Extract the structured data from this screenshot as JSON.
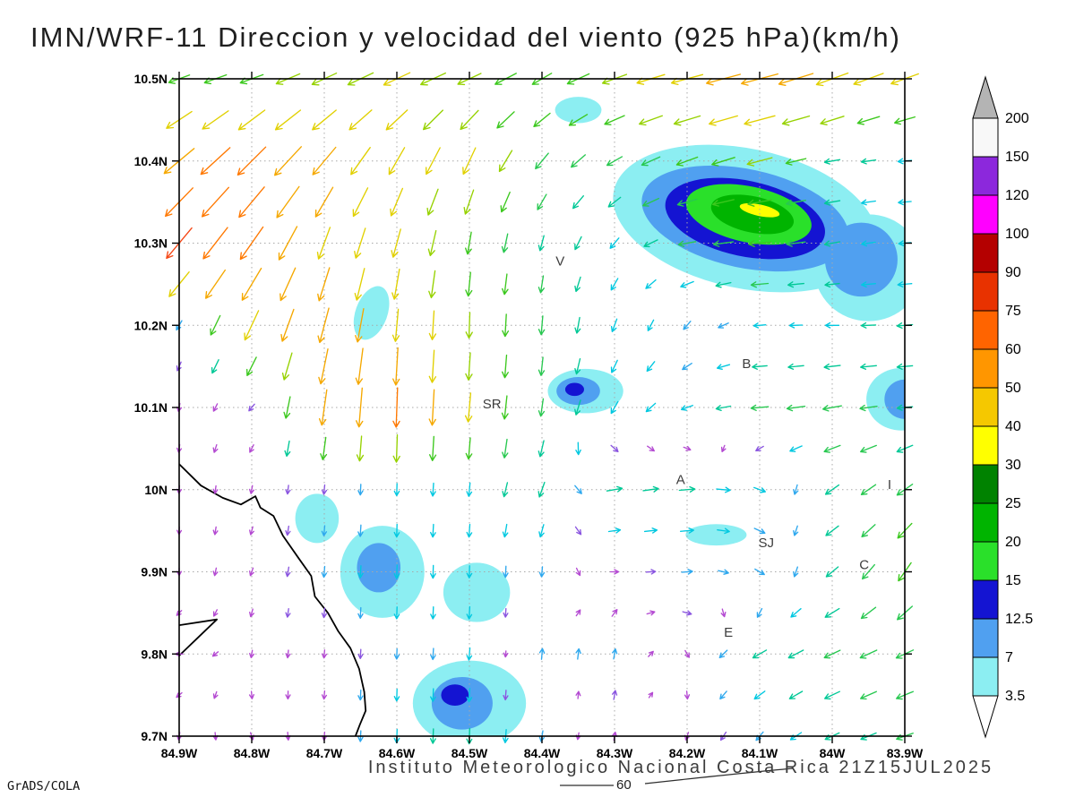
{
  "title": "IMN/WRF-11 Direccion y velocidad del viento (925 hPa)(km/h)",
  "footer": {
    "caption": "Instituto Meteorologico Nacional Costa Rica 21Z15JUL2025",
    "credit": "GrADS/COLA",
    "stray_contour_label": "60"
  },
  "chart_data": {
    "type": "vector_field",
    "title": "IMN/WRF-11 Direccion y velocidad del viento (925 hPa)(km/h)",
    "shading_variable": "wind speed (km/h)",
    "x_axis": {
      "ticks": [
        "84.9W",
        "84.8W",
        "84.7W",
        "84.6W",
        "84.5W",
        "84.4W",
        "84.3W",
        "84.2W",
        "84.1W",
        "84W",
        "83.9W"
      ],
      "lon_range": [
        84.9,
        83.9
      ]
    },
    "y_axis": {
      "ticks": [
        "10.5N",
        "10.4N",
        "10.3N",
        "10.2N",
        "10.1N",
        "10N",
        "9.9N",
        "9.8N",
        "9.7N"
      ],
      "lat_range": [
        9.7,
        10.5
      ]
    },
    "colorbar": {
      "levels": [
        3.5,
        7,
        12.5,
        15,
        20,
        25,
        30,
        40,
        50,
        60,
        75,
        90,
        100,
        120,
        150,
        200
      ],
      "labels": [
        "3.5",
        "7",
        "12.5",
        "15",
        "20",
        "25",
        "30",
        "40",
        "50",
        "60",
        "75",
        "90",
        "100",
        "120",
        "150",
        "200"
      ],
      "segment_colors": [
        "#8ceef2",
        "#50a0f0",
        "#1414d2",
        "#2ae02a",
        "#00b400",
        "#008200",
        "#ffff00",
        "#f5c800",
        "#ff9600",
        "#ff6400",
        "#e83200",
        "#b40000",
        "#ff00ff",
        "#8c28dc",
        "#f8f8f8"
      ],
      "over_color": "#b4b4b4",
      "under_color": "#ffffff"
    },
    "vector_colors": [
      {
        "max": 4.5,
        "color": "#b44ad2"
      },
      {
        "max": 6.5,
        "color": "#8a55e0"
      },
      {
        "max": 9,
        "color": "#2ea8ee"
      },
      {
        "max": 13,
        "color": "#00c8e0"
      },
      {
        "max": 17,
        "color": "#00c896"
      },
      {
        "max": 22,
        "color": "#28c850"
      },
      {
        "max": 28,
        "color": "#3cc81e"
      },
      {
        "max": 34,
        "color": "#96d200"
      },
      {
        "max": 42,
        "color": "#e1d000"
      },
      {
        "max": 52,
        "color": "#f5a800"
      },
      {
        "max": 64,
        "color": "#ff7800"
      },
      {
        "max": 80,
        "color": "#f54614"
      },
      {
        "max": 9999,
        "color": "#e12020"
      }
    ],
    "wind_grid": {
      "dir_convention": "direction arrow points toward, degrees CCW from east (0=E, 90=N, 180=W, 270=S)",
      "lons": [
        84.9,
        84.8,
        84.7,
        84.6,
        84.5,
        84.4,
        84.3,
        84.2,
        84.1,
        84.0,
        83.9
      ],
      "lats": [
        10.5,
        10.4,
        10.3,
        10.2,
        10.1,
        10.0,
        9.9,
        9.8,
        9.7
      ],
      "speed": [
        [
          25,
          28,
          32,
          35,
          30,
          25,
          30,
          40,
          48,
          42,
          35
        ],
        [
          50,
          55,
          45,
          38,
          35,
          22,
          18,
          25,
          30,
          15,
          12
        ],
        [
          70,
          55,
          42,
          35,
          25,
          15,
          12,
          18,
          25,
          15,
          10
        ],
        [
          8,
          40,
          45,
          40,
          30,
          20,
          12,
          8,
          10,
          12,
          15
        ],
        [
          4,
          5,
          45,
          55,
          35,
          18,
          12,
          10,
          18,
          20,
          15
        ],
        [
          3,
          4,
          6,
          10,
          12,
          15,
          15,
          15,
          10,
          16,
          20
        ],
        [
          3,
          4,
          8,
          12,
          10,
          7,
          4,
          8,
          8,
          15,
          25
        ],
        [
          3,
          3,
          4,
          7,
          10,
          8,
          7,
          4,
          15,
          18,
          20
        ],
        [
          3,
          3,
          4,
          12,
          15,
          8,
          4,
          4,
          8,
          15,
          18
        ]
      ],
      "dir": [
        [
          200,
          200,
          205,
          205,
          205,
          210,
          200,
          195,
          195,
          200,
          200
        ],
        [
          220,
          225,
          230,
          240,
          245,
          230,
          210,
          200,
          195,
          190,
          185
        ],
        [
          230,
          235,
          250,
          255,
          260,
          255,
          230,
          190,
          185,
          190,
          185
        ],
        [
          240,
          245,
          255,
          265,
          268,
          265,
          250,
          230,
          185,
          180,
          185
        ],
        [
          260,
          230,
          262,
          268,
          265,
          262,
          240,
          200,
          185,
          190,
          185
        ],
        [
          265,
          260,
          265,
          268,
          265,
          250,
          10,
          5,
          340,
          215,
          215
        ],
        [
          270,
          250,
          265,
          268,
          268,
          265,
          0,
          5,
          330,
          220,
          235
        ],
        [
          180,
          260,
          265,
          268,
          265,
          85,
          80,
          300,
          210,
          205,
          205
        ],
        [
          260,
          290,
          265,
          268,
          268,
          260,
          80,
          250,
          230,
          205,
          200
        ]
      ]
    },
    "shaded_regions": [
      {
        "lon": 84.12,
        "lat": 10.33,
        "rx": 0.185,
        "ry": 0.085,
        "rot": 12,
        "color": "#8ceef2"
      },
      {
        "lon": 83.95,
        "lat": 10.27,
        "rx": 0.075,
        "ry": 0.065,
        "rot": 0,
        "color": "#8ceef2"
      },
      {
        "lon": 84.12,
        "lat": 10.33,
        "rx": 0.145,
        "ry": 0.06,
        "rot": 12,
        "color": "#50a0f0"
      },
      {
        "lon": 83.96,
        "lat": 10.28,
        "rx": 0.05,
        "ry": 0.045,
        "rot": 0,
        "color": "#50a0f0"
      },
      {
        "lon": 84.12,
        "lat": 10.33,
        "rx": 0.112,
        "ry": 0.046,
        "rot": 12,
        "color": "#1414d2"
      },
      {
        "lon": 84.115,
        "lat": 10.335,
        "rx": 0.088,
        "ry": 0.034,
        "rot": 12,
        "color": "#2ae02a"
      },
      {
        "lon": 84.11,
        "lat": 10.335,
        "rx": 0.058,
        "ry": 0.022,
        "rot": 12,
        "color": "#00b400"
      },
      {
        "lon": 84.1,
        "lat": 10.34,
        "rx": 0.028,
        "ry": 0.007,
        "rot": 12,
        "color": "#ffff00"
      },
      {
        "lon": 84.35,
        "lat": 10.462,
        "rx": 0.032,
        "ry": 0.016,
        "rot": 0,
        "color": "#8ceef2"
      },
      {
        "lon": 84.635,
        "lat": 10.215,
        "rx": 0.022,
        "ry": 0.034,
        "rot": 20,
        "color": "#8ceef2"
      },
      {
        "lon": 84.34,
        "lat": 10.12,
        "rx": 0.052,
        "ry": 0.027,
        "rot": 0,
        "color": "#8ceef2"
      },
      {
        "lon": 84.35,
        "lat": 10.12,
        "rx": 0.03,
        "ry": 0.017,
        "rot": 0,
        "color": "#50a0f0"
      },
      {
        "lon": 84.355,
        "lat": 10.122,
        "rx": 0.013,
        "ry": 0.008,
        "rot": 0,
        "color": "#1414d2"
      },
      {
        "lon": 83.905,
        "lat": 10.11,
        "rx": 0.048,
        "ry": 0.038,
        "rot": 0,
        "color": "#8ceef2"
      },
      {
        "lon": 83.9,
        "lat": 10.11,
        "rx": 0.028,
        "ry": 0.024,
        "rot": 0,
        "color": "#50a0f0"
      },
      {
        "lon": 84.71,
        "lat": 9.965,
        "rx": 0.03,
        "ry": 0.03,
        "rot": 0,
        "color": "#8ceef2"
      },
      {
        "lon": 84.62,
        "lat": 9.9,
        "rx": 0.058,
        "ry": 0.056,
        "rot": 0,
        "color": "#8ceef2"
      },
      {
        "lon": 84.625,
        "lat": 9.905,
        "rx": 0.03,
        "ry": 0.03,
        "rot": 0,
        "color": "#50a0f0"
      },
      {
        "lon": 84.49,
        "lat": 9.875,
        "rx": 0.046,
        "ry": 0.036,
        "rot": 0,
        "color": "#8ceef2"
      },
      {
        "lon": 84.16,
        "lat": 9.945,
        "rx": 0.042,
        "ry": 0.013,
        "rot": 0,
        "color": "#8ceef2"
      },
      {
        "lon": 84.5,
        "lat": 9.74,
        "rx": 0.078,
        "ry": 0.052,
        "rot": 0,
        "color": "#8ceef2"
      },
      {
        "lon": 84.51,
        "lat": 9.74,
        "rx": 0.042,
        "ry": 0.032,
        "rot": 0,
        "color": "#50a0f0"
      },
      {
        "lon": 84.52,
        "lat": 9.75,
        "rx": 0.019,
        "ry": 0.013,
        "rot": 0,
        "color": "#1414d2"
      }
    ],
    "cities": [
      {
        "label": "V",
        "lon": 84.375,
        "lat": 10.273
      },
      {
        "label": "SR",
        "lon": 84.469,
        "lat": 10.099
      },
      {
        "label": "B",
        "lon": 84.118,
        "lat": 10.148
      },
      {
        "label": "A",
        "lon": 84.209,
        "lat": 10.007
      },
      {
        "label": "SJ",
        "lon": 84.091,
        "lat": 9.93
      },
      {
        "label": "C",
        "lon": 83.956,
        "lat": 9.903
      },
      {
        "label": "E",
        "lon": 84.143,
        "lat": 9.821
      },
      {
        "label": "I",
        "lon": 83.921,
        "lat": 10.001
      }
    ],
    "coastline": {
      "segments": [
        [
          [
            84.9,
            10.031
          ],
          [
            84.87,
            10.005
          ],
          [
            84.84,
            9.99
          ],
          [
            84.815,
            9.982
          ],
          [
            84.795,
            9.992
          ],
          [
            84.788,
            9.978
          ],
          [
            84.77,
            9.968
          ],
          [
            84.757,
            9.944
          ],
          [
            84.735,
            9.916
          ],
          [
            84.718,
            9.895
          ],
          [
            84.713,
            9.87
          ],
          [
            84.695,
            9.85
          ],
          [
            84.681,
            9.828
          ],
          [
            84.664,
            9.807
          ],
          [
            84.652,
            9.782
          ],
          [
            84.645,
            9.754
          ],
          [
            84.643,
            9.731
          ],
          [
            84.651,
            9.714
          ],
          [
            84.657,
            9.7
          ]
        ],
        [
          [
            84.9,
            9.835
          ],
          [
            84.848,
            9.842
          ],
          [
            84.9,
            9.798
          ]
        ]
      ]
    }
  }
}
